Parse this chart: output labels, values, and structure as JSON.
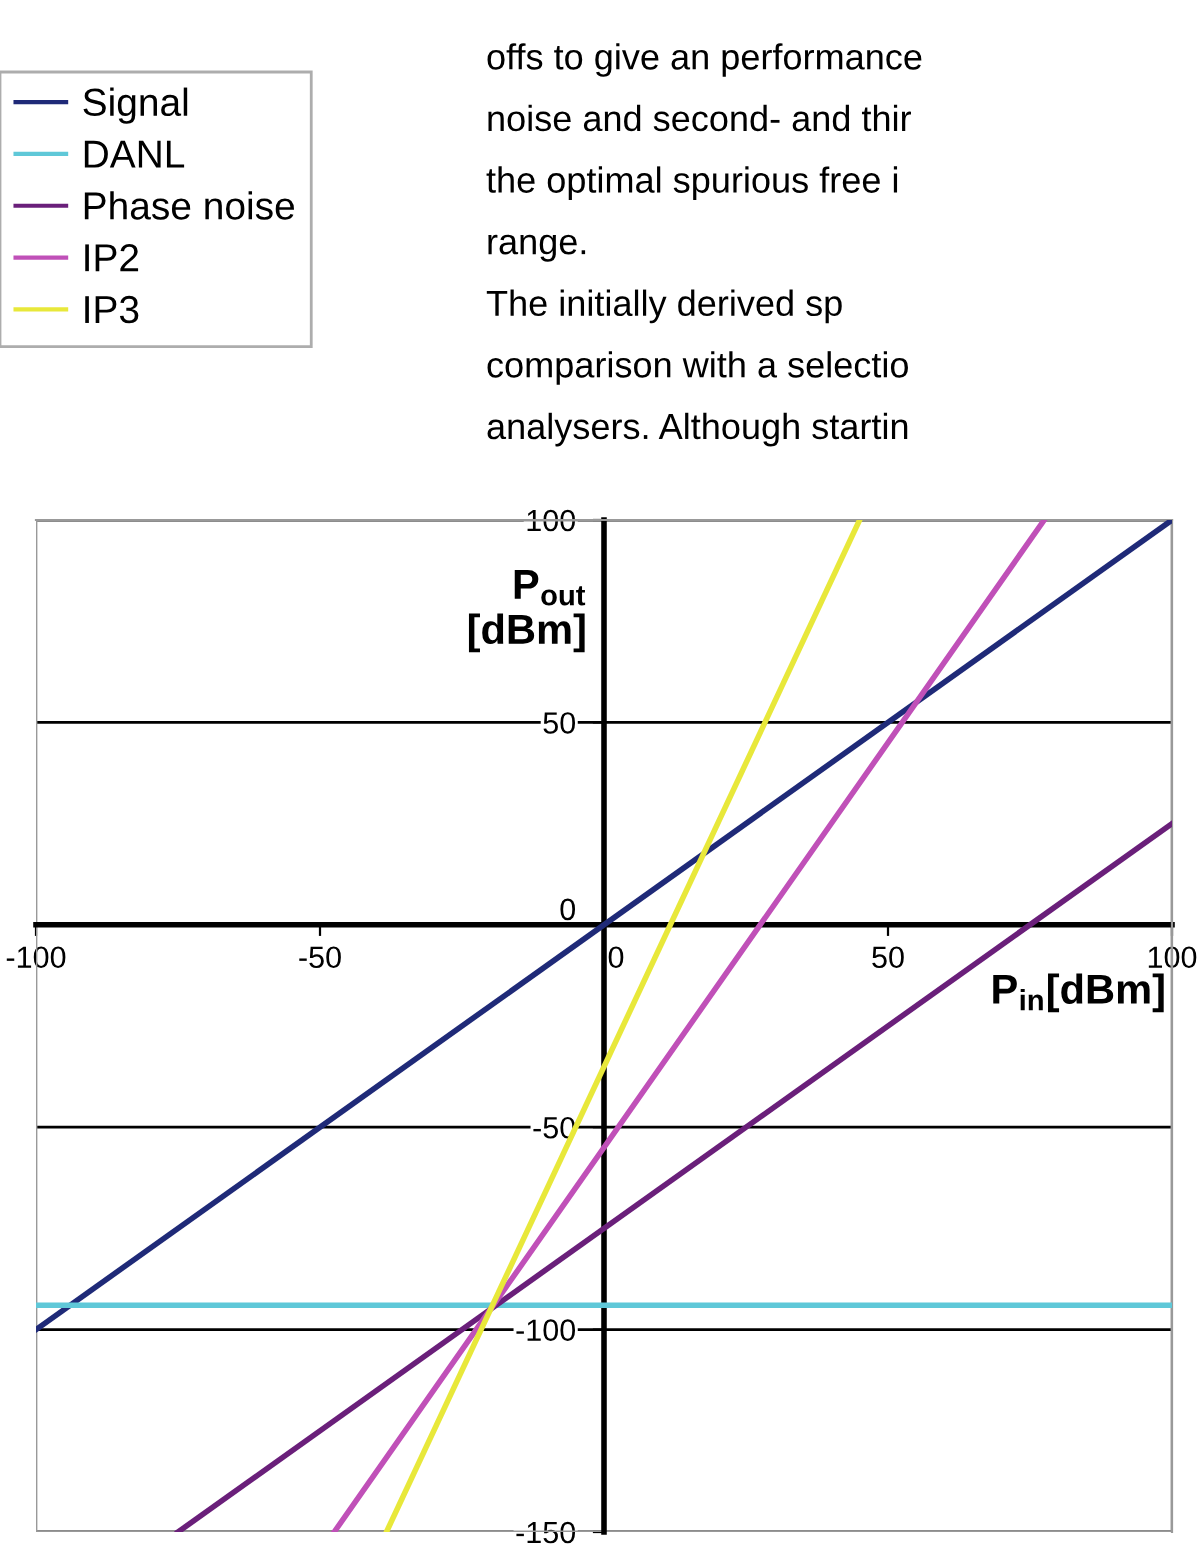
{
  "chart_data": {
    "type": "line",
    "xlabel": "P$_{in}$[dBm]",
    "ylabel": "P$_{out}$\n[dBm]",
    "series": [
      {
        "name": "Signal",
        "color": "#1f2a78",
        "x": [
          -100,
          100
        ],
        "values": [
          -100,
          100
        ]
      },
      {
        "name": "DANL",
        "color": "#5fc8d8",
        "x": [
          -100,
          100
        ],
        "values": [
          -94,
          -94
        ]
      },
      {
        "name": "Phase noise",
        "color": "#6a1f7a",
        "x": [
          -75,
          100
        ],
        "values": [
          -150,
          25
        ]
      },
      {
        "name": "IP2",
        "color": "#c050b8",
        "x": [
          -47.5,
          77.5
        ],
        "values": [
          -150,
          100
        ]
      },
      {
        "name": "IP3",
        "color": "#e8e83a",
        "x": [
          -38.3,
          45
        ],
        "values": [
          -150,
          100
        ]
      }
    ],
    "xlim": [
      -100,
      100
    ],
    "ylim": [
      -150,
      100
    ],
    "xticks": [
      -100,
      -50,
      0,
      50,
      100
    ],
    "yticks": [
      -150,
      -100,
      -50,
      0,
      50,
      100
    ],
    "grid": "y",
    "legend": "top left",
    "marker": "none",
    "line_style": "solid",
    "annotations": [
      "offs to give an performance",
      "noise and second- and thir",
      "the optimal spurious free i",
      "range.",
      "The initially derived sp",
      "comparison with a selectio",
      "analysers. Although startin"
    ]
  }
}
